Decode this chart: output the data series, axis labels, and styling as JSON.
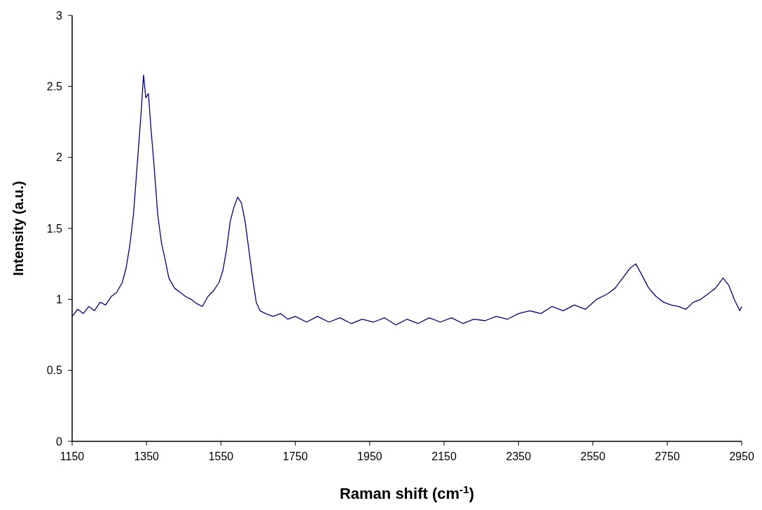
{
  "chart_data": {
    "type": "line",
    "xlabel": "Raman shift (cm$^{-1}$)",
    "ylabel": "Intensity (a.u.)",
    "xlim": [
      1150,
      2950
    ],
    "xticks": [
      1150,
      1350,
      1550,
      1750,
      1950,
      2150,
      2350,
      2550,
      2750,
      2950
    ],
    "ylim": [
      0,
      3
    ],
    "yticks": [
      0,
      0.5,
      1,
      1.5,
      2,
      2.5,
      3
    ],
    "grid": false,
    "marker": "none",
    "line_style": "solid",
    "series": [
      {
        "color": "#000080",
        "x": [
          1150,
          1165,
          1180,
          1195,
          1210,
          1225,
          1240,
          1255,
          1270,
          1285,
          1295,
          1305,
          1315,
          1325,
          1335,
          1342,
          1348,
          1355,
          1362,
          1370,
          1380,
          1390,
          1400,
          1410,
          1425,
          1440,
          1455,
          1470,
          1485,
          1500,
          1515,
          1530,
          1545,
          1555,
          1565,
          1575,
          1585,
          1595,
          1605,
          1615,
          1625,
          1635,
          1645,
          1655,
          1670,
          1690,
          1710,
          1730,
          1750,
          1780,
          1810,
          1840,
          1870,
          1900,
          1930,
          1960,
          1990,
          2020,
          2050,
          2080,
          2110,
          2140,
          2170,
          2200,
          2230,
          2260,
          2290,
          2320,
          2350,
          2380,
          2410,
          2440,
          2470,
          2500,
          2530,
          2560,
          2590,
          2610,
          2630,
          2650,
          2665,
          2680,
          2700,
          2720,
          2740,
          2760,
          2780,
          2800,
          2820,
          2840,
          2860,
          2880,
          2900,
          2915,
          2930,
          2945,
          2950
        ],
        "values": [
          0.88,
          0.93,
          0.9,
          0.95,
          0.92,
          0.98,
          0.96,
          1.02,
          1.05,
          1.12,
          1.22,
          1.38,
          1.6,
          1.95,
          2.3,
          2.58,
          2.42,
          2.45,
          2.2,
          1.95,
          1.6,
          1.4,
          1.28,
          1.15,
          1.08,
          1.05,
          1.02,
          1.0,
          0.97,
          0.95,
          1.02,
          1.06,
          1.12,
          1.2,
          1.35,
          1.55,
          1.65,
          1.72,
          1.68,
          1.55,
          1.35,
          1.15,
          0.98,
          0.92,
          0.9,
          0.88,
          0.9,
          0.86,
          0.88,
          0.84,
          0.88,
          0.84,
          0.87,
          0.83,
          0.86,
          0.84,
          0.87,
          0.82,
          0.86,
          0.83,
          0.87,
          0.84,
          0.87,
          0.83,
          0.86,
          0.85,
          0.88,
          0.86,
          0.9,
          0.92,
          0.9,
          0.95,
          0.92,
          0.96,
          0.93,
          1.0,
          1.04,
          1.08,
          1.15,
          1.22,
          1.25,
          1.18,
          1.08,
          1.02,
          0.98,
          0.96,
          0.95,
          0.93,
          0.98,
          1.0,
          1.04,
          1.08,
          1.15,
          1.1,
          1.0,
          0.92,
          0.95
        ]
      }
    ]
  }
}
